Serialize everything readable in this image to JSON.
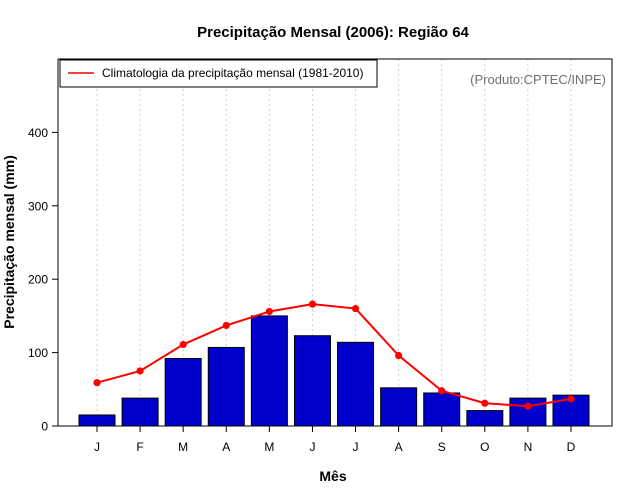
{
  "chart_data": {
    "type": "bar",
    "title": "Precipitação Mensal (2006): Região 64",
    "xlabel": "Mês",
    "ylabel": "Precipitação mensal (mm)",
    "ylim": [
      0,
      500
    ],
    "yticks": [
      0,
      100,
      200,
      300,
      400
    ],
    "categories": [
      "J",
      "F",
      "M",
      "A",
      "M",
      "J",
      "J",
      "A",
      "S",
      "O",
      "N",
      "D"
    ],
    "series": [
      {
        "name": "Precipitação mensal (2006)",
        "kind": "bar",
        "color": "#0000cd",
        "values": [
          15,
          38,
          92,
          107,
          150,
          123,
          114,
          52,
          45,
          21,
          38,
          42
        ]
      },
      {
        "name": "Climatologia da precipitação mensal (1981-2010)",
        "kind": "line",
        "color": "#ff0000",
        "values": [
          59,
          75,
          111,
          137,
          156,
          166,
          160,
          96,
          48,
          31,
          27,
          37
        ]
      }
    ],
    "legend": {
      "label": "Climatologia da precipitação mensal (1981-2010)",
      "position": "top-left"
    },
    "grid": "vertical dotted",
    "credit": "(Produto:CPTEC/INPE)",
    "credit_color": "#707070"
  }
}
